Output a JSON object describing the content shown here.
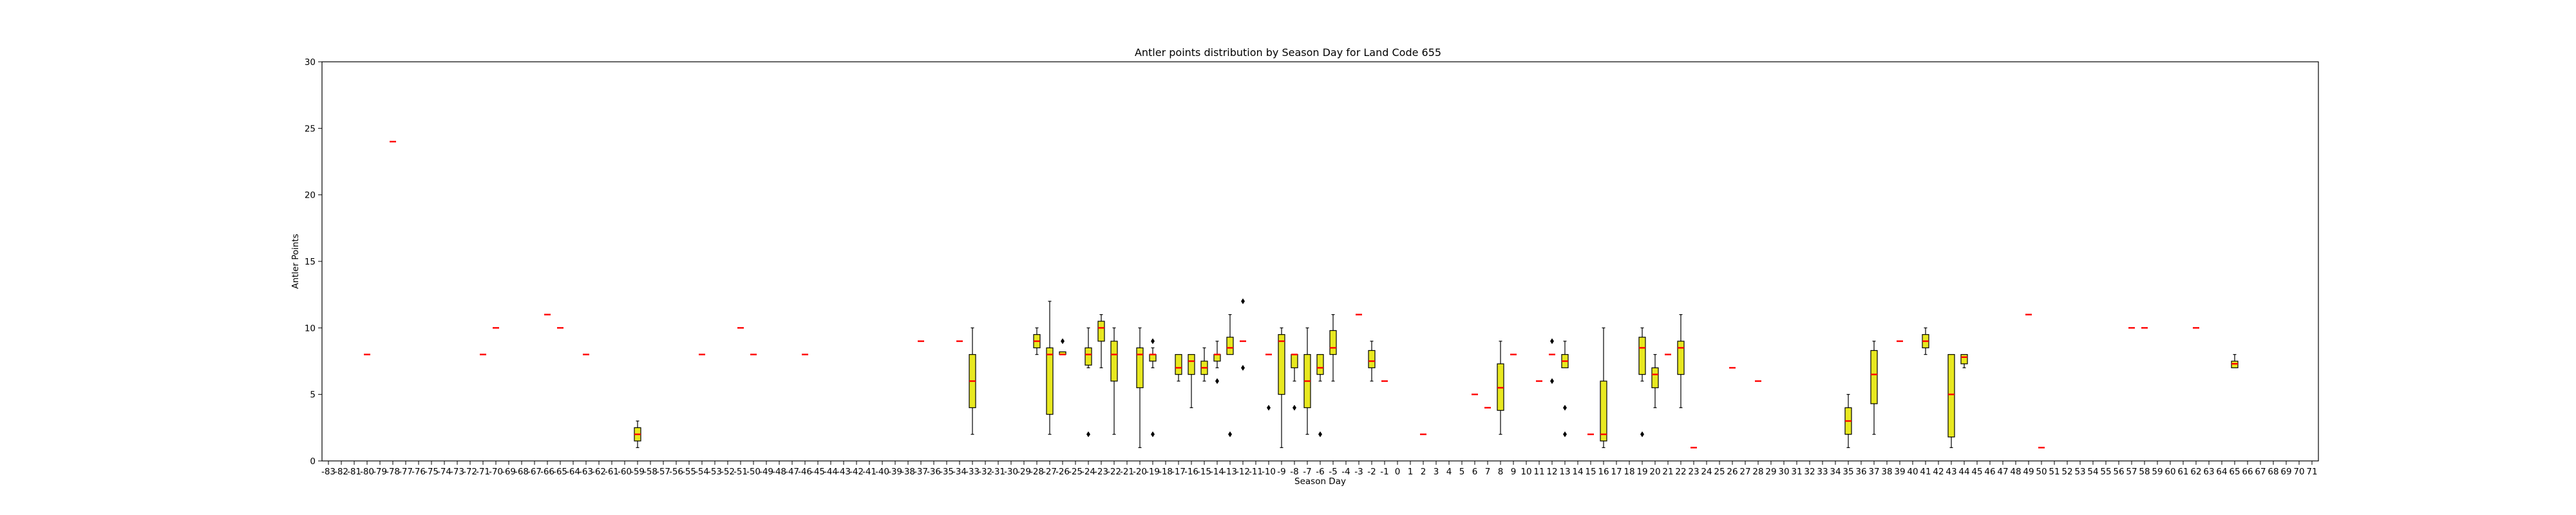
{
  "chart_data": {
    "type": "box",
    "title": "Antler points distribution by Season Day for Land Code 655",
    "xlabel": "Season Day",
    "ylabel": "Antler Points",
    "ylim": [
      0,
      30
    ],
    "yticks": [
      0,
      5,
      10,
      15,
      20,
      25,
      30
    ],
    "grid": false,
    "box_color": "#e8e820",
    "median_color": "#ff0000",
    "x_min": -83,
    "x_max": 71,
    "categories": [
      -83,
      -82,
      -81,
      -80,
      -79,
      -78,
      -77,
      -76,
      -75,
      -74,
      -73,
      -72,
      -71,
      -70,
      -69,
      -68,
      -67,
      -66,
      -65,
      -64,
      -63,
      -62,
      -61,
      -60,
      -59,
      -58,
      -57,
      -56,
      -55,
      -54,
      -53,
      -52,
      -51,
      -50,
      -49,
      -48,
      -47,
      -46,
      -45,
      -44,
      -43,
      -42,
      -41,
      -40,
      -39,
      -38,
      -37,
      -36,
      -35,
      -34,
      -33,
      -32,
      -31,
      -30,
      -29,
      -28,
      -27,
      -26,
      -25,
      -24,
      -23,
      -22,
      -21,
      -20,
      -19,
      -18,
      -17,
      -16,
      -15,
      -14,
      -13,
      -12,
      -11,
      -10,
      -9,
      -8,
      -7,
      -6,
      -5,
      -4,
      -3,
      -2,
      -1,
      0,
      1,
      2,
      3,
      4,
      5,
      6,
      7,
      8,
      9,
      10,
      11,
      12,
      13,
      14,
      15,
      16,
      17,
      18,
      19,
      20,
      21,
      22,
      23,
      24,
      25,
      26,
      27,
      28,
      29,
      30,
      31,
      32,
      33,
      34,
      35,
      36,
      37,
      38,
      39,
      40,
      41,
      42,
      43,
      44,
      45,
      46,
      47,
      48,
      49,
      50,
      51,
      52,
      53,
      54,
      55,
      56,
      57,
      58,
      59,
      60,
      61,
      62,
      63,
      64,
      65,
      66,
      67,
      68,
      69,
      70,
      71
    ],
    "boxes": [
      {
        "day": -80,
        "min": 8,
        "q1": 8,
        "median": 8,
        "q3": 8,
        "max": 8,
        "fliers": []
      },
      {
        "day": -78,
        "min": 24,
        "q1": 24,
        "median": 24,
        "q3": 24,
        "max": 24,
        "fliers": []
      },
      {
        "day": -71,
        "min": 8,
        "q1": 8,
        "median": 8,
        "q3": 8,
        "max": 8,
        "fliers": []
      },
      {
        "day": -70,
        "min": 10,
        "q1": 10,
        "median": 10,
        "q3": 10,
        "max": 10,
        "fliers": []
      },
      {
        "day": -66,
        "min": 11,
        "q1": 11,
        "median": 11,
        "q3": 11,
        "max": 11,
        "fliers": []
      },
      {
        "day": -65,
        "min": 10,
        "q1": 10,
        "median": 10,
        "q3": 10,
        "max": 10,
        "fliers": []
      },
      {
        "day": -63,
        "min": 8,
        "q1": 8,
        "median": 8,
        "q3": 8,
        "max": 8,
        "fliers": []
      },
      {
        "day": -59,
        "min": 1,
        "q1": 1.5,
        "median": 2,
        "q3": 2.5,
        "max": 3,
        "fliers": []
      },
      {
        "day": -54,
        "min": 8,
        "q1": 8,
        "median": 8,
        "q3": 8,
        "max": 8,
        "fliers": []
      },
      {
        "day": -51,
        "min": 10,
        "q1": 10,
        "median": 10,
        "q3": 10,
        "max": 10,
        "fliers": []
      },
      {
        "day": -50,
        "min": 8,
        "q1": 8,
        "median": 8,
        "q3": 8,
        "max": 8,
        "fliers": []
      },
      {
        "day": -46,
        "min": 8,
        "q1": 8,
        "median": 8,
        "q3": 8,
        "max": 8,
        "fliers": []
      },
      {
        "day": -37,
        "min": 9,
        "q1": 9,
        "median": 9,
        "q3": 9,
        "max": 9,
        "fliers": []
      },
      {
        "day": -34,
        "min": 9,
        "q1": 9,
        "median": 9,
        "q3": 9,
        "max": 9,
        "fliers": []
      },
      {
        "day": -33,
        "min": 2,
        "q1": 4,
        "median": 6,
        "q3": 8,
        "max": 10,
        "fliers": []
      },
      {
        "day": -28,
        "min": 8,
        "q1": 8.5,
        "median": 9,
        "q3": 9.5,
        "max": 10,
        "fliers": []
      },
      {
        "day": -27,
        "min": 2,
        "q1": 3.5,
        "median": 8,
        "q3": 8.5,
        "max": 12,
        "fliers": []
      },
      {
        "day": -26,
        "min": 8,
        "q1": 8,
        "median": 8,
        "q3": 8.2,
        "max": 8.2,
        "fliers": [
          9
        ]
      },
      {
        "day": -24,
        "min": 7,
        "q1": 7.2,
        "median": 8,
        "q3": 8.5,
        "max": 10,
        "fliers": [
          2
        ]
      },
      {
        "day": -23,
        "min": 7,
        "q1": 9,
        "median": 10,
        "q3": 10.5,
        "max": 11,
        "fliers": []
      },
      {
        "day": -22,
        "min": 2,
        "q1": 6,
        "median": 8,
        "q3": 9,
        "max": 10,
        "fliers": []
      },
      {
        "day": -20,
        "min": 1,
        "q1": 5.5,
        "median": 8,
        "q3": 8.5,
        "max": 10,
        "fliers": []
      },
      {
        "day": -19,
        "min": 7,
        "q1": 7.5,
        "median": 8,
        "q3": 8,
        "max": 8.5,
        "fliers": [
          9,
          2
        ]
      },
      {
        "day": -17,
        "min": 6,
        "q1": 6.5,
        "median": 7,
        "q3": 8,
        "max": 8,
        "fliers": []
      },
      {
        "day": -16,
        "min": 4,
        "q1": 6.5,
        "median": 7.5,
        "q3": 8,
        "max": 8,
        "fliers": []
      },
      {
        "day": -15,
        "min": 6,
        "q1": 6.5,
        "median": 7,
        "q3": 7.5,
        "max": 8.5,
        "fliers": []
      },
      {
        "day": -14,
        "min": 7,
        "q1": 7.5,
        "median": 8,
        "q3": 8,
        "max": 9,
        "fliers": [
          6
        ]
      },
      {
        "day": -13,
        "min": 8,
        "q1": 8,
        "median": 8.5,
        "q3": 9.3,
        "max": 11,
        "fliers": [
          2
        ]
      },
      {
        "day": -12,
        "min": 9,
        "q1": 9,
        "median": 9,
        "q3": 9,
        "max": 9,
        "fliers": [
          12,
          7
        ]
      },
      {
        "day": -10,
        "min": 8,
        "q1": 8,
        "median": 8,
        "q3": 8,
        "max": 8,
        "fliers": [
          4
        ]
      },
      {
        "day": -9,
        "min": 1,
        "q1": 5,
        "median": 9,
        "q3": 9.5,
        "max": 10,
        "fliers": []
      },
      {
        "day": -8,
        "min": 6,
        "q1": 7,
        "median": 8,
        "q3": 8,
        "max": 8,
        "fliers": [
          4
        ]
      },
      {
        "day": -7,
        "min": 2,
        "q1": 4,
        "median": 6,
        "q3": 8,
        "max": 10,
        "fliers": []
      },
      {
        "day": -6,
        "min": 6,
        "q1": 6.5,
        "median": 7,
        "q3": 8,
        "max": 8,
        "fliers": [
          2
        ]
      },
      {
        "day": -5,
        "min": 6,
        "q1": 8,
        "median": 8.5,
        "q3": 9.8,
        "max": 11,
        "fliers": []
      },
      {
        "day": -3,
        "min": 11,
        "q1": 11,
        "median": 11,
        "q3": 11,
        "max": 11,
        "fliers": []
      },
      {
        "day": -2,
        "min": 6,
        "q1": 7,
        "median": 7.5,
        "q3": 8.3,
        "max": 9,
        "fliers": []
      },
      {
        "day": -1,
        "min": 6,
        "q1": 6,
        "median": 6,
        "q3": 6,
        "max": 6,
        "fliers": []
      },
      {
        "day": 2,
        "min": 2,
        "q1": 2,
        "median": 2,
        "q3": 2,
        "max": 2,
        "fliers": []
      },
      {
        "day": 6,
        "min": 5,
        "q1": 5,
        "median": 5,
        "q3": 5,
        "max": 5,
        "fliers": []
      },
      {
        "day": 7,
        "min": 4,
        "q1": 4,
        "median": 4,
        "q3": 4,
        "max": 4,
        "fliers": []
      },
      {
        "day": 8,
        "min": 2,
        "q1": 3.8,
        "median": 5.5,
        "q3": 7.3,
        "max": 9,
        "fliers": []
      },
      {
        "day": 9,
        "min": 8,
        "q1": 8,
        "median": 8,
        "q3": 8,
        "max": 8,
        "fliers": []
      },
      {
        "day": 11,
        "min": 6,
        "q1": 6,
        "median": 6,
        "q3": 6,
        "max": 6,
        "fliers": []
      },
      {
        "day": 12,
        "min": 8,
        "q1": 8,
        "median": 8,
        "q3": 8,
        "max": 8,
        "fliers": [
          9,
          6
        ]
      },
      {
        "day": 13,
        "min": 7,
        "q1": 7,
        "median": 7.5,
        "q3": 8,
        "max": 9,
        "fliers": [
          4,
          2
        ]
      },
      {
        "day": 15,
        "min": 2,
        "q1": 2,
        "median": 2,
        "q3": 2,
        "max": 2,
        "fliers": []
      },
      {
        "day": 16,
        "min": 1,
        "q1": 1.5,
        "median": 2,
        "q3": 6,
        "max": 10,
        "fliers": []
      },
      {
        "day": 19,
        "min": 6,
        "q1": 6.5,
        "median": 8.5,
        "q3": 9.3,
        "max": 10,
        "fliers": [
          2
        ]
      },
      {
        "day": 20,
        "min": 4,
        "q1": 5.5,
        "median": 6.5,
        "q3": 7,
        "max": 8,
        "fliers": []
      },
      {
        "day": 21,
        "min": 8,
        "q1": 8,
        "median": 8,
        "q3": 8,
        "max": 8,
        "fliers": []
      },
      {
        "day": 22,
        "min": 4,
        "q1": 6.5,
        "median": 8.5,
        "q3": 9,
        "max": 11,
        "fliers": []
      },
      {
        "day": 23,
        "min": 1,
        "q1": 1,
        "median": 1,
        "q3": 1,
        "max": 1,
        "fliers": []
      },
      {
        "day": 26,
        "min": 7,
        "q1": 7,
        "median": 7,
        "q3": 7,
        "max": 7,
        "fliers": []
      },
      {
        "day": 28,
        "min": 6,
        "q1": 6,
        "median": 6,
        "q3": 6,
        "max": 6,
        "fliers": []
      },
      {
        "day": 35,
        "min": 1,
        "q1": 2,
        "median": 3,
        "q3": 4,
        "max": 5,
        "fliers": []
      },
      {
        "day": 37,
        "min": 2,
        "q1": 4.3,
        "median": 6.5,
        "q3": 8.3,
        "max": 9,
        "fliers": []
      },
      {
        "day": 39,
        "min": 9,
        "q1": 9,
        "median": 9,
        "q3": 9,
        "max": 9,
        "fliers": []
      },
      {
        "day": 41,
        "min": 8,
        "q1": 8.5,
        "median": 9,
        "q3": 9.5,
        "max": 10,
        "fliers": []
      },
      {
        "day": 43,
        "min": 1,
        "q1": 1.8,
        "median": 5,
        "q3": 8,
        "max": 8,
        "fliers": []
      },
      {
        "day": 44,
        "min": 7,
        "q1": 7.3,
        "median": 7.8,
        "q3": 8,
        "max": 8,
        "fliers": []
      },
      {
        "day": 49,
        "min": 11,
        "q1": 11,
        "median": 11,
        "q3": 11,
        "max": 11,
        "fliers": []
      },
      {
        "day": 50,
        "min": 1,
        "q1": 1,
        "median": 1,
        "q3": 1,
        "max": 1,
        "fliers": []
      },
      {
        "day": 57,
        "min": 10,
        "q1": 10,
        "median": 10,
        "q3": 10,
        "max": 10,
        "fliers": []
      },
      {
        "day": 58,
        "min": 10,
        "q1": 10,
        "median": 10,
        "q3": 10,
        "max": 10,
        "fliers": []
      },
      {
        "day": 62,
        "min": 10,
        "q1": 10,
        "median": 10,
        "q3": 10,
        "max": 10,
        "fliers": []
      },
      {
        "day": 65,
        "min": 7,
        "q1": 7,
        "median": 7.3,
        "q3": 7.5,
        "max": 8,
        "fliers": []
      }
    ]
  }
}
